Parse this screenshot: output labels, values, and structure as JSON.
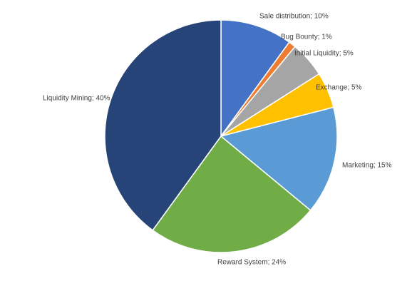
{
  "chart_data": {
    "type": "pie",
    "values": [
      10,
      1,
      5,
      5,
      15,
      24,
      40
    ],
    "value_labels": [
      "Sale distribution; 10%",
      "Bug Bounty; 1%",
      "Initial Liquidity; 5%",
      "Exchange; 5%",
      "Marketing; 15%",
      "Reward System; 24%",
      "Liquidity Mining; 40%"
    ],
    "colors": [
      "#4472c4",
      "#ed7d31",
      "#a5a5a5",
      "#ffc000",
      "#5b9bd5",
      "#70ad47",
      "#264478"
    ]
  }
}
